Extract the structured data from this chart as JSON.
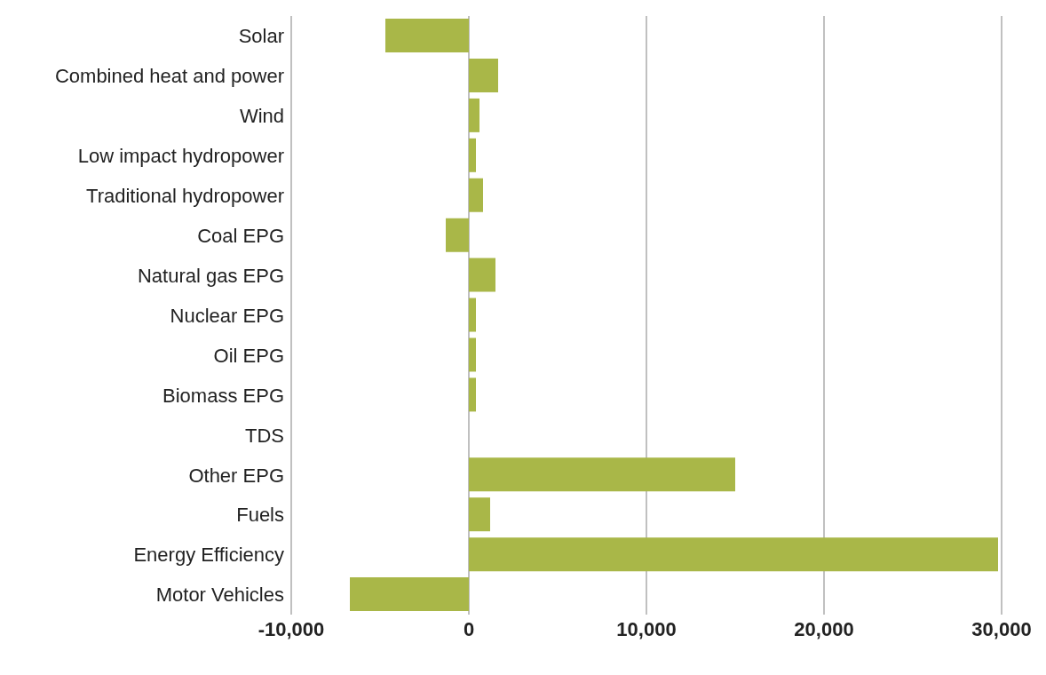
{
  "chart_data": {
    "type": "bar",
    "orientation": "horizontal",
    "categories": [
      "Solar",
      "Combined heat and power",
      "Wind",
      "Low impact hydropower",
      "Traditional hydropower",
      "Coal EPG",
      "Natural gas EPG",
      "Nuclear EPG",
      "Oil EPG",
      "Biomass EPG",
      "TDS",
      "Other EPG",
      "Fuels",
      "Energy Efficiency",
      "Motor Vehicles"
    ],
    "values": [
      -4700,
      1650,
      600,
      400,
      800,
      -1300,
      1500,
      400,
      400,
      400,
      0,
      15000,
      1200,
      29800,
      -6700
    ],
    "color": "#a9b748",
    "xlim": [
      -10000,
      30000
    ],
    "xticks": [
      {
        "value": -10000,
        "label": "-10,000"
      },
      0,
      {
        "value": 10000,
        "label": "10,000"
      },
      {
        "value": 20000,
        "label": "20,000"
      },
      {
        "value": 30000,
        "label": "30,000"
      }
    ],
    "grid": "x"
  }
}
